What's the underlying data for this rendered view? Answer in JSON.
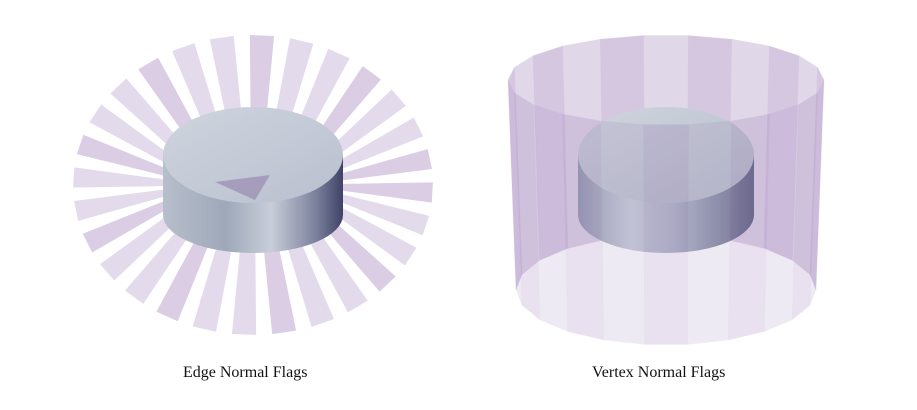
{
  "figures": [
    {
      "caption": "Edge Normal Flags"
    },
    {
      "caption": "Vertex Normal Flags"
    }
  ],
  "colors": {
    "flag_fill": "#9b7fb8",
    "flag_dark": "#7a4a9e",
    "disk_top": "#c4cad6",
    "disk_side": "#aab3c3",
    "disk_shadow": "#4b4f6e"
  }
}
